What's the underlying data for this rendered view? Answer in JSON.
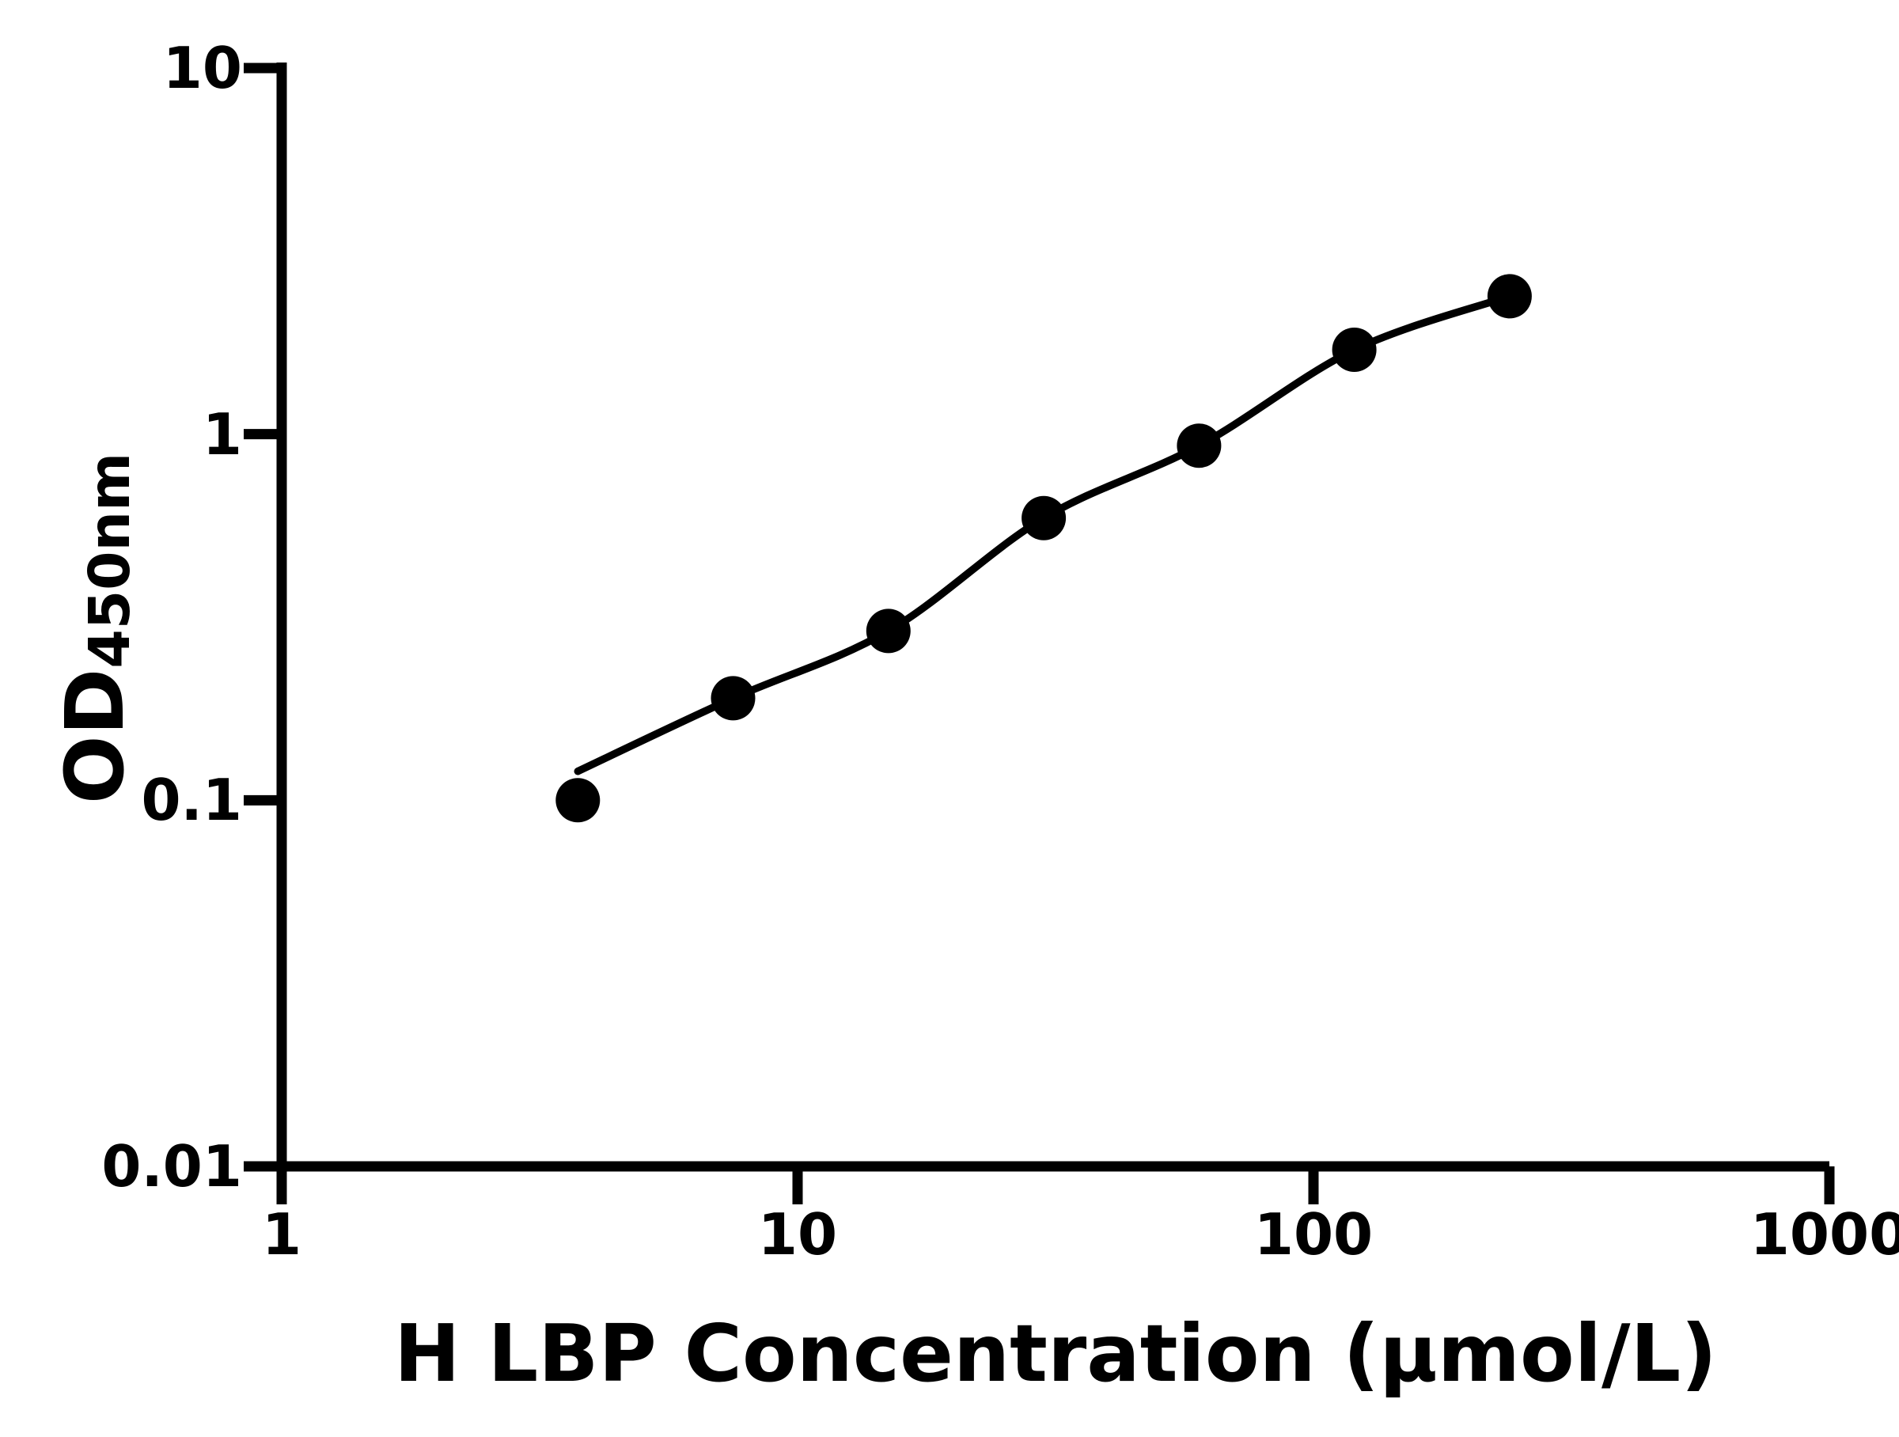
{
  "chart_data": {
    "type": "scatter",
    "title": "",
    "xlabel": "H LBP Concentration (μmol/L)",
    "ylabel": "OD450nm",
    "ylabel_main": "OD",
    "ylabel_sub": "450nm",
    "x_scale": "log",
    "y_scale": "log",
    "x_range": [
      1,
      1000
    ],
    "y_range": [
      0.01,
      10
    ],
    "x_ticks": [
      {
        "value": 1,
        "label": "1"
      },
      {
        "value": 10,
        "label": "10"
      },
      {
        "value": 100,
        "label": "100"
      },
      {
        "value": 1000,
        "label": "1000"
      }
    ],
    "y_ticks": [
      {
        "value": 10,
        "label": "10"
      },
      {
        "value": 1,
        "label": "1"
      },
      {
        "value": 0.1,
        "label": "0.1"
      },
      {
        "value": 0.01,
        "label": "0.01"
      }
    ],
    "grid": false,
    "legend": false,
    "colors": {
      "foreground": "#000000",
      "background": "#ffffff"
    },
    "series": [
      {
        "name": "standard-points",
        "kind": "points",
        "marker": "filled-circle",
        "marker_radius_px": 28,
        "color": "#000000",
        "x": [
          3.75,
          7.5,
          15,
          30,
          60,
          120,
          240
        ],
        "y": [
          0.1,
          0.19,
          0.29,
          0.59,
          0.93,
          1.7,
          2.38
        ]
      },
      {
        "name": "fitted-curve",
        "kind": "smooth-line",
        "stroke_width_px": 9.5,
        "color": "#000000",
        "x": [
          3.75,
          7.5,
          15,
          30,
          60,
          120,
          240
        ],
        "y": [
          0.12,
          0.19,
          0.29,
          0.59,
          0.93,
          1.7,
          2.38
        ]
      }
    ]
  }
}
